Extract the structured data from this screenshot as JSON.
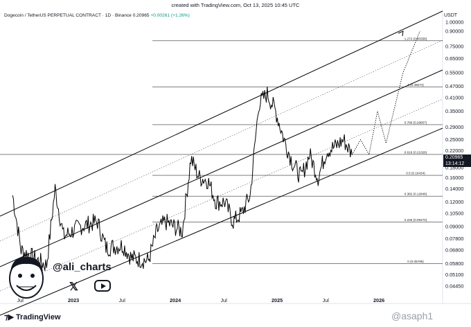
{
  "header": {
    "created_text": "created with TradingView.com, Oct 13, 2025 10:45 UTC",
    "symbol": "Dogecoin / TetherUS PERPETUAL CONTRACT · 1D · Binance",
    "price": "0.20965",
    "change": "+0.00261 (+1.26%)"
  },
  "currency": "USDT",
  "price_tag": {
    "price": "0.20965",
    "countdown": "13:14:12"
  },
  "price_axis": [
    "1.00000",
    "0.90000",
    "0.75000",
    "0.65000",
    "0.55000",
    "0.47000",
    "0.41000",
    "0.35000",
    "0.29000",
    "0.25000",
    "0.22000",
    "0.18000",
    "0.16000",
    "0.14000",
    "0.12000",
    "0.10500",
    "0.09000",
    "0.07800",
    "0.06800",
    "0.05800",
    "0.05100",
    "0.04450"
  ],
  "time_axis": [
    "Jul",
    "2023",
    "Jul",
    "2024",
    "Jul",
    "2025",
    "Jul",
    "2026"
  ],
  "fib_levels": [
    "1.272 (0.80358)",
    "1 (0.46674)",
    "0.786 (0.29857)",
    "0.618 (0.21026)",
    "0.5 (0.16434)",
    "0.382 (0.12848)",
    "0.236 (0.09470)",
    "0 (0.05798)"
  ],
  "branding": {
    "handle": "@ali_charts",
    "logo": "TradingView",
    "watermark": "@asaph1"
  },
  "icons": {
    "x": "x-logo-icon",
    "youtube": "youtube-play-icon",
    "tradingview": "tradingview-logo-icon"
  },
  "colors": {
    "up": "#089981",
    "text": "#131722",
    "lines": "#000000"
  },
  "chart_data": {
    "type": "line",
    "title": "Dogecoin / TetherUS PERPETUAL CONTRACT · 1D · Binance",
    "y_scale": "log",
    "ylim": [
      0.04,
      1.05
    ],
    "series": [
      {
        "name": "DOGEUSDT",
        "points": [
          [
            "2022-06",
            0.13
          ],
          [
            "2022-07",
            0.068
          ],
          [
            "2022-09",
            0.06
          ],
          [
            "2022-10",
            0.057
          ],
          [
            "2022-11",
            0.14
          ],
          [
            "2022-12",
            0.08
          ],
          [
            "2023-02",
            0.09
          ],
          [
            "2023-04",
            0.095
          ],
          [
            "2023-05",
            0.07
          ],
          [
            "2023-07",
            0.072
          ],
          [
            "2023-08",
            0.062
          ],
          [
            "2023-10",
            0.06
          ],
          [
            "2023-11",
            0.085
          ],
          [
            "2023-12",
            0.095
          ],
          [
            "2024-02",
            0.085
          ],
          [
            "2024-03",
            0.2
          ],
          [
            "2024-04",
            0.16
          ],
          [
            "2024-05",
            0.155
          ],
          [
            "2024-06",
            0.12
          ],
          [
            "2024-07",
            0.12
          ],
          [
            "2024-08",
            0.095
          ],
          [
            "2024-09",
            0.105
          ],
          [
            "2024-10",
            0.13
          ],
          [
            "2024-11",
            0.38
          ],
          [
            "2024-12",
            0.43
          ],
          [
            "2025-01",
            0.35
          ],
          [
            "2025-02",
            0.25
          ],
          [
            "2025-03",
            0.19
          ],
          [
            "2025-04",
            0.16
          ],
          [
            "2025-05",
            0.21
          ],
          [
            "2025-06",
            0.16
          ],
          [
            "2025-07",
            0.22
          ],
          [
            "2025-08",
            0.23
          ],
          [
            "2025-09",
            0.25
          ],
          [
            "2025-10",
            0.20965
          ]
        ]
      },
      {
        "name": "projection",
        "points": [
          [
            "2025-10",
            0.20965
          ],
          [
            "2025-11",
            0.25
          ],
          [
            "2025-12",
            0.21
          ],
          [
            "2026-01",
            0.35
          ],
          [
            "2026-02",
            0.24
          ],
          [
            "2026-04",
            0.55
          ],
          [
            "2026-06",
            0.9
          ]
        ]
      }
    ]
  }
}
